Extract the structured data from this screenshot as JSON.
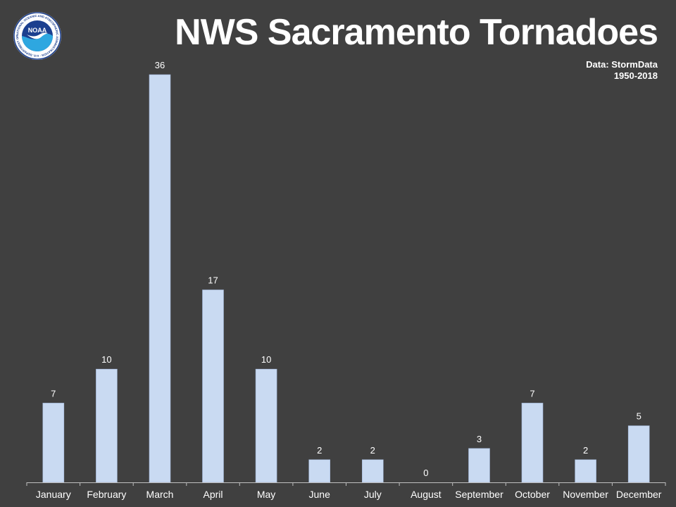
{
  "title": "NWS Sacramento Tornadoes",
  "source": {
    "line1": "Data: StormData",
    "line2": "1950-2018"
  },
  "logo": {
    "text": "NOAA",
    "ring_text": "NATIONAL OCEANIC AND ATMOSPHERIC ADMINISTRATION · U.S. DEPARTMENT OF COMMERCE ·"
  },
  "colors": {
    "background": "#404040",
    "bar": "#c9daf2",
    "bar_stroke": "#9fb4d6",
    "axis": "#bfbfbf",
    "text": "#ffffff"
  },
  "chart_data": {
    "type": "bar",
    "categories": [
      "January",
      "February",
      "March",
      "April",
      "May",
      "June",
      "July",
      "August",
      "September",
      "October",
      "November",
      "December"
    ],
    "values": [
      7,
      10,
      36,
      17,
      10,
      2,
      2,
      0,
      3,
      7,
      2,
      5
    ],
    "title": "NWS Sacramento Tornadoes",
    "xlabel": "",
    "ylabel": "",
    "ylim": [
      0,
      36
    ],
    "data_labels": true,
    "grid": false,
    "legend": "none"
  }
}
